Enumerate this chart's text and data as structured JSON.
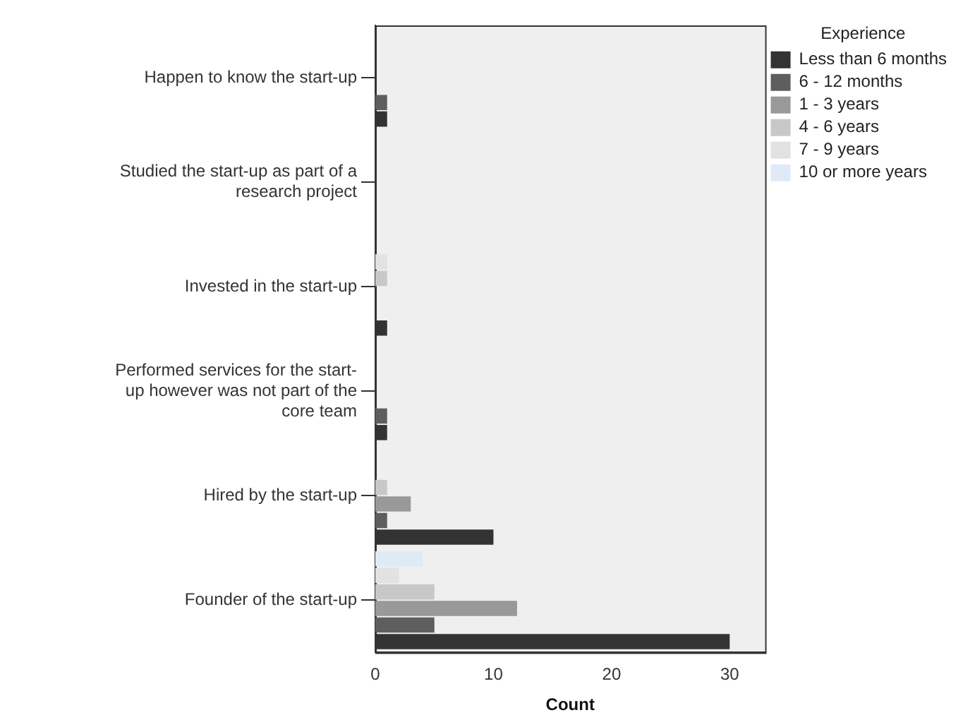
{
  "chart_data": {
    "type": "bar",
    "orientation": "horizontal",
    "xlabel": "Count",
    "legend_title": "Experience",
    "legend": "top right",
    "grid": false,
    "categories": [
      "Happen to know the start-up",
      "Studied the start-up as part of a research project",
      "Invested in the start-up",
      "Performed services for the start-up however was not part of the core team",
      "Hired by the start-up",
      "Founder of the start-up"
    ],
    "xlim": [
      0,
      33
    ],
    "xticks": [
      0,
      10,
      20,
      30
    ],
    "series": [
      {
        "name": "Less than 6 months",
        "color": "#333333",
        "values": [
          1,
          null,
          1,
          1,
          10,
          30
        ]
      },
      {
        "name": "6 - 12 months",
        "color": "#5e5e5e",
        "values": [
          1,
          null,
          null,
          1,
          1,
          5
        ]
      },
      {
        "name": "1 - 3 years",
        "color": "#999999",
        "values": [
          null,
          null,
          null,
          null,
          3,
          12
        ]
      },
      {
        "name": "4 - 6 years",
        "color": "#c8c8c8",
        "values": [
          null,
          null,
          1,
          null,
          1,
          5
        ]
      },
      {
        "name": "7 - 9 years",
        "color": "#e2e2e2",
        "values": [
          null,
          null,
          1,
          null,
          null,
          2
        ]
      },
      {
        "name": "10 or more years",
        "color": "#deebf7",
        "values": [
          null,
          null,
          null,
          null,
          null,
          4
        ]
      }
    ]
  }
}
